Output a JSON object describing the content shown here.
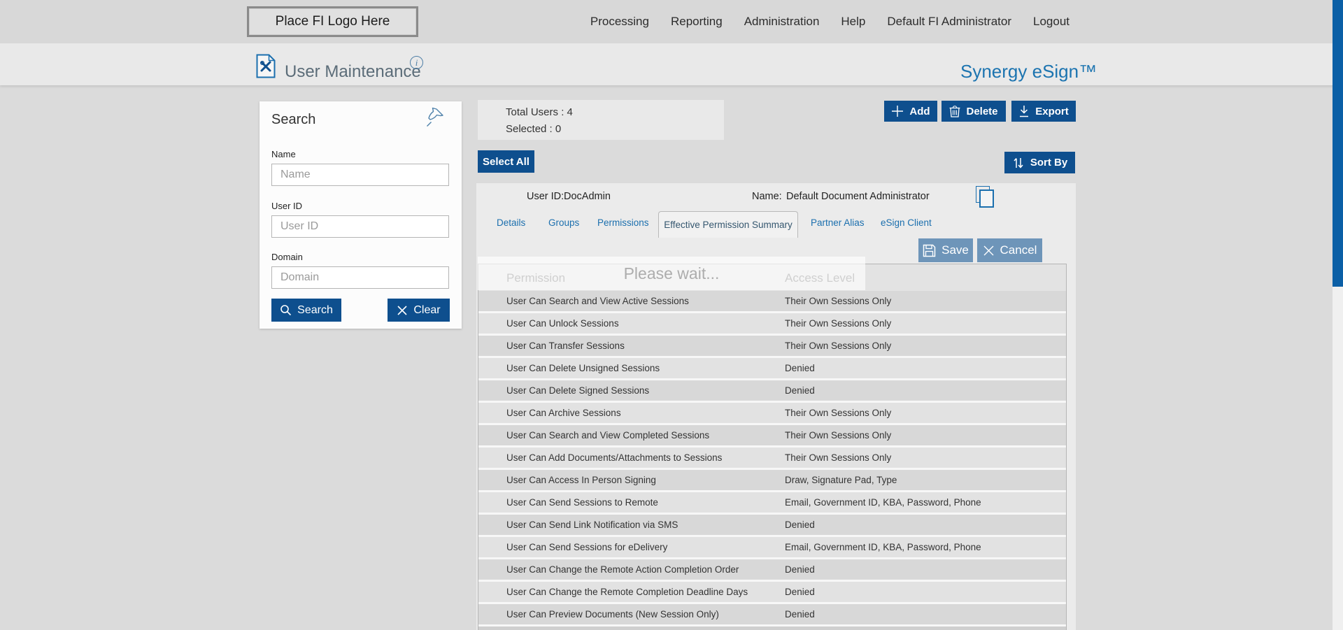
{
  "topbar": {
    "logo_text": "Place FI Logo Here",
    "menu": [
      "Processing",
      "Reporting",
      "Administration",
      "Help",
      "Default FI Administrator",
      "Logout"
    ]
  },
  "header": {
    "title": "User Maintenance",
    "brand": "Synergy eSign™"
  },
  "search_panel": {
    "title": "Search",
    "fields": [
      {
        "label": "Name",
        "placeholder": "Name",
        "value": ""
      },
      {
        "label": "User ID",
        "placeholder": "User ID",
        "value": ""
      },
      {
        "label": "Domain",
        "placeholder": "Domain",
        "value": ""
      }
    ],
    "search_button": "Search",
    "clear_button": "Clear"
  },
  "toolbar": {
    "total_users_label": "Total Users : 4",
    "selected_label": "Selected : 0",
    "add": "Add",
    "delete": "Delete",
    "export": "Export",
    "select_all": "Select All",
    "sort_by": "Sort By"
  },
  "user_card": {
    "user_id_label": "User ID:",
    "user_id": "DocAdmin",
    "name_label": "Name:",
    "name": "Default Document Administrator",
    "tabs": [
      "Details",
      "Groups",
      "Permissions",
      "Effective Permission Summary",
      "Partner Alias",
      "eSign Client"
    ],
    "active_tab_index": 3,
    "save": "Save",
    "cancel": "Cancel"
  },
  "loading": {
    "text": "Please wait..."
  },
  "table": {
    "columns": [
      "Permission",
      "Access Level"
    ],
    "rows": [
      [
        "User Can Search and View Active Sessions",
        "Their Own Sessions Only"
      ],
      [
        "User Can Unlock Sessions",
        "Their Own Sessions Only"
      ],
      [
        "User Can Transfer Sessions",
        "Their Own Sessions Only"
      ],
      [
        "User Can Delete Unsigned Sessions",
        "Denied"
      ],
      [
        "User Can Delete Signed Sessions",
        "Denied"
      ],
      [
        "User Can Archive Sessions",
        "Their Own Sessions Only"
      ],
      [
        "User Can Search and View Completed Sessions",
        "Their Own Sessions Only"
      ],
      [
        "User Can Add Documents/Attachments to Sessions",
        "Their Own Sessions Only"
      ],
      [
        "User Can Access In Person Signing",
        "Draw, Signature Pad, Type"
      ],
      [
        "User Can Send Sessions to Remote",
        "Email, Government ID, KBA, Password, Phone"
      ],
      [
        "User Can Send Link Notification via SMS",
        "Denied"
      ],
      [
        "User Can Send Sessions for eDelivery",
        "Email, Government ID, KBA, Password, Phone"
      ],
      [
        "User Can Change the Remote Action Completion Order",
        "Denied"
      ],
      [
        "User Can Change the Remote Completion Deadline Days",
        "Denied"
      ],
      [
        "User Can Preview Documents (New Session Only)",
        "Denied"
      ]
    ]
  },
  "colors": {
    "primary_button": "#0e4f8e",
    "muted_button": "#6e95b9",
    "link_blue": "#1b6fae",
    "brand_blue": "#1c74b0",
    "scrollbar_blue": "#0b5fa6",
    "page_background": "#dbdbdb"
  }
}
